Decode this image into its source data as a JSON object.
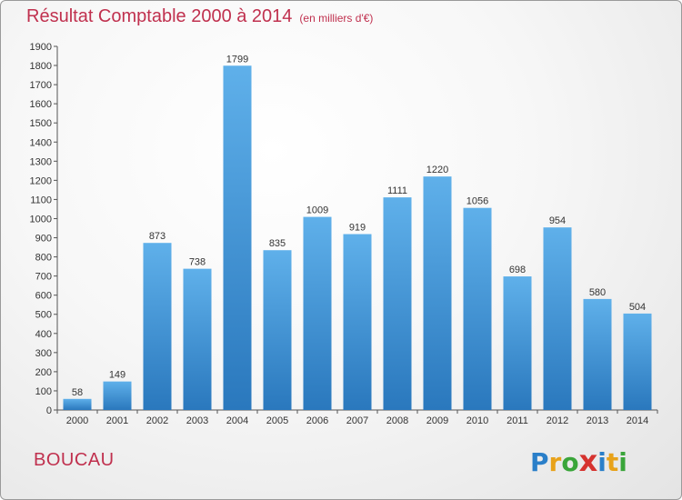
{
  "chart_data": {
    "type": "bar",
    "title": "Résultat Comptable 2000 à 2014",
    "subtitle": "(en milliers d'€)",
    "categories": [
      "2000",
      "2001",
      "2002",
      "2003",
      "2004",
      "2005",
      "2006",
      "2007",
      "2008",
      "2009",
      "2010",
      "2011",
      "2012",
      "2013",
      "2014"
    ],
    "values": [
      58,
      149,
      873,
      738,
      1799,
      835,
      1009,
      919,
      1111,
      1220,
      1056,
      698,
      954,
      580,
      504
    ],
    "xlabel": "",
    "ylabel": "",
    "ylim": [
      0,
      1900
    ],
    "yticks": [
      0,
      100,
      200,
      300,
      400,
      500,
      600,
      700,
      800,
      900,
      1000,
      1100,
      1200,
      1300,
      1400,
      1500,
      1600,
      1700,
      1800,
      1900
    ],
    "grid": false
  },
  "place_name": "BOUCAU",
  "logo": {
    "letters": [
      "P",
      "r",
      "o",
      "x",
      "i",
      "t",
      "i"
    ],
    "colors": [
      "#2a7fc9",
      "#e8a21a",
      "#3aa53a",
      "#d6332f",
      "#2a7fc9",
      "#e8a21a",
      "#3aa53a"
    ]
  },
  "colors": {
    "bar_top": "#5fb0ea",
    "bar_bottom": "#2a78bd",
    "title": "#c0304e"
  }
}
